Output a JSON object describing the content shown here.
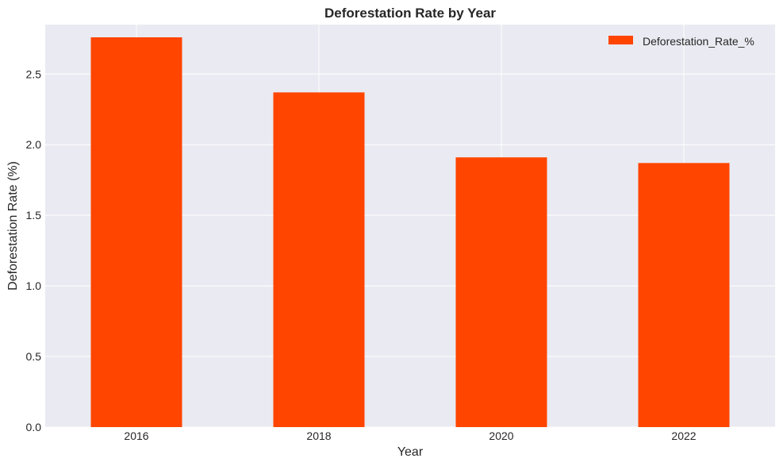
{
  "chart_data": {
    "type": "bar",
    "title": "Deforestation Rate by Year",
    "xlabel": "Year",
    "ylabel": "Deforestation Rate (%)",
    "categories": [
      "2016",
      "2018",
      "2020",
      "2022"
    ],
    "series": [
      {
        "name": "Deforestation_Rate_%",
        "values": [
          2.76,
          2.37,
          1.91,
          1.87
        ],
        "color": "#ff4500"
      }
    ],
    "ylim": [
      0,
      2.85
    ],
    "yticks": [
      "0.0",
      "0.5",
      "1.0",
      "1.5",
      "2.0",
      "2.5"
    ],
    "grid": true,
    "legend_position": "top-right",
    "colors": {
      "background": "#eaeaf2",
      "grid": "#ffffff",
      "bar": "#ff4500"
    }
  }
}
